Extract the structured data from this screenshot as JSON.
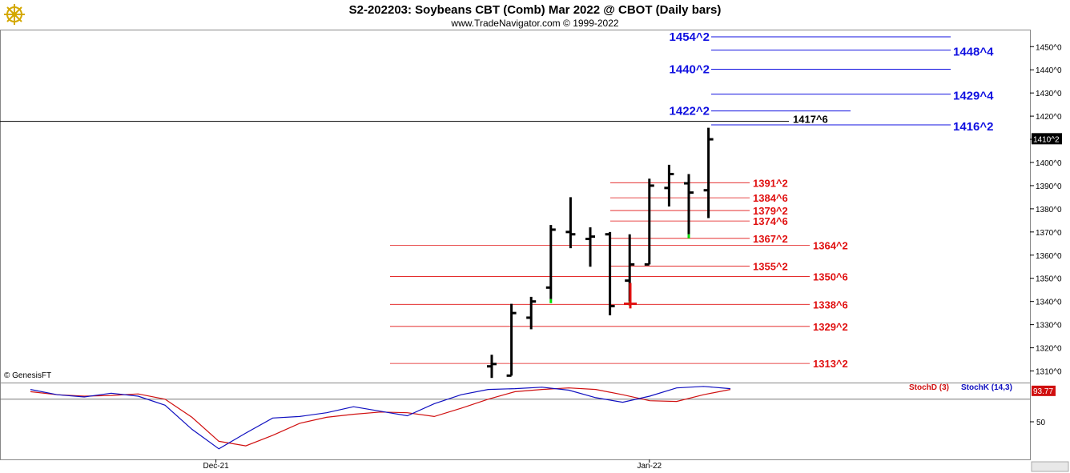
{
  "header": {
    "title": "S2-202203:  Soybeans CBT (Comb) Mar 2022 @ CBOT  (Daily bars)",
    "subtitle": "www.TradeNavigator.com © 1999-2022"
  },
  "watermark": "© GenesisFT",
  "logo_icon": "ship-wheel-icon",
  "colors": {
    "blue_levels": "#1010e0",
    "red_levels": "#e01010",
    "stoch_k": "#1010c0",
    "stoch_d": "#d01010",
    "up_tick": "#00dd00",
    "price_bar": "#000000"
  },
  "chart_data": [
    {
      "type": "bar",
      "subtype": "ohlc",
      "price_axis": {
        "range": [
          1305,
          1457
        ],
        "ticks": [
          "1310^0",
          "1320^0",
          "1330^0",
          "1340^0",
          "1350^0",
          "1360^0",
          "1370^0",
          "1380^0",
          "1390^0",
          "1400^0",
          "1410^0",
          "1420^0",
          "1430^0",
          "1440^0",
          "1450^0"
        ],
        "tick_values": [
          1310,
          1320,
          1330,
          1340,
          1350,
          1360,
          1370,
          1380,
          1390,
          1400,
          1410,
          1420,
          1430,
          1440,
          1450
        ]
      },
      "last_price": {
        "value": 1410.25,
        "label": "1410^2"
      },
      "crosshair_price": 1417.75,
      "bars": [
        {
          "o": 1312,
          "h": 1317,
          "l": 1307,
          "c": 1313
        },
        {
          "o": 1308,
          "h": 1339,
          "l": 1308,
          "c": 1335
        },
        {
          "o": 1333,
          "h": 1342,
          "l": 1328,
          "c": 1340
        },
        {
          "o": 1346,
          "h": 1373,
          "l": 1341,
          "c": 1371,
          "up_tick": true
        },
        {
          "o": 1370,
          "h": 1385,
          "l": 1363,
          "c": 1369
        },
        {
          "o": 1367,
          "h": 1372,
          "l": 1355,
          "c": 1368
        },
        {
          "o": 1369,
          "h": 1370,
          "l": 1334,
          "c": 1338
        },
        {
          "o": 1349,
          "h": 1369,
          "l": 1340,
          "c": 1356,
          "up_tick": true
        },
        {
          "o": 1356,
          "h": 1393,
          "l": 1356,
          "c": 1390
        },
        {
          "o": 1389,
          "h": 1399,
          "l": 1381,
          "c": 1395
        },
        {
          "o": 1391,
          "h": 1395,
          "l": 1369,
          "c": 1387,
          "up_tick": true
        },
        {
          "o": 1388,
          "h": 1415,
          "l": 1376,
          "c": 1410
        }
      ],
      "extra_bar": {
        "o": 1338,
        "h": 1348,
        "l": 1337,
        "c": 1339,
        "color": "#e01010",
        "label": "red cross"
      },
      "blue_levels": [
        {
          "label": "1454^2",
          "value": 1454.25,
          "side": "left"
        },
        {
          "label": "1448^4",
          "value": 1448.5,
          "side": "right"
        },
        {
          "label": "1440^2",
          "value": 1440.25,
          "side": "left"
        },
        {
          "label": "1429^4",
          "value": 1429.5,
          "side": "right"
        },
        {
          "label": "1422^2",
          "value": 1422.25,
          "side": "left"
        },
        {
          "label": "1416^2",
          "value": 1416.25,
          "side": "right"
        }
      ],
      "black_levels": [
        {
          "label": "1417^6",
          "value": 1417.75
        }
      ],
      "red_levels": [
        {
          "label": "1391^2",
          "value": 1391.25,
          "group": "near"
        },
        {
          "label": "1384^6",
          "value": 1384.75,
          "group": "near"
        },
        {
          "label": "1379^2",
          "value": 1379.25,
          "group": "near"
        },
        {
          "label": "1374^6",
          "value": 1374.75,
          "group": "near"
        },
        {
          "label": "1367^2",
          "value": 1367.25,
          "group": "near"
        },
        {
          "label": "1364^2",
          "value": 1364.25,
          "group": "far"
        },
        {
          "label": "1355^2",
          "value": 1355.25,
          "group": "near"
        },
        {
          "label": "1350^6",
          "value": 1350.75,
          "group": "far"
        },
        {
          "label": "1338^6",
          "value": 1338.75,
          "group": "far"
        },
        {
          "label": "1329^2",
          "value": 1329.25,
          "group": "far"
        },
        {
          "label": "1313^2",
          "value": 1313.25,
          "group": "far"
        }
      ],
      "x_axis": {
        "ticks": [
          {
            "label": "Dec-21",
            "index": -14
          },
          {
            "label": "Jan-22",
            "index": 8
          }
        ]
      }
    },
    {
      "type": "line",
      "name": "stochastic",
      "y_range": [
        0,
        100
      ],
      "ticks": [
        "50"
      ],
      "tick_values": [
        50
      ],
      "last_label": "93.77",
      "series": [
        {
          "name": "StochD (3)",
          "color": "#d01010",
          "values": [
            90,
            86,
            84,
            85,
            87,
            80,
            56,
            24,
            18,
            32,
            48,
            56,
            60,
            63,
            62,
            57,
            68,
            80,
            90,
            93,
            95,
            93,
            86,
            78,
            77,
            86,
            93
          ]
        },
        {
          "name": "StochK (14,3)",
          "color": "#1010c0",
          "values": [
            93,
            86,
            83,
            88,
            84,
            72,
            40,
            14,
            35,
            55,
            57,
            62,
            70,
            64,
            58,
            74,
            86,
            93,
            94,
            96,
            92,
            82,
            76,
            84,
            95,
            97,
            94
          ]
        }
      ]
    }
  ]
}
